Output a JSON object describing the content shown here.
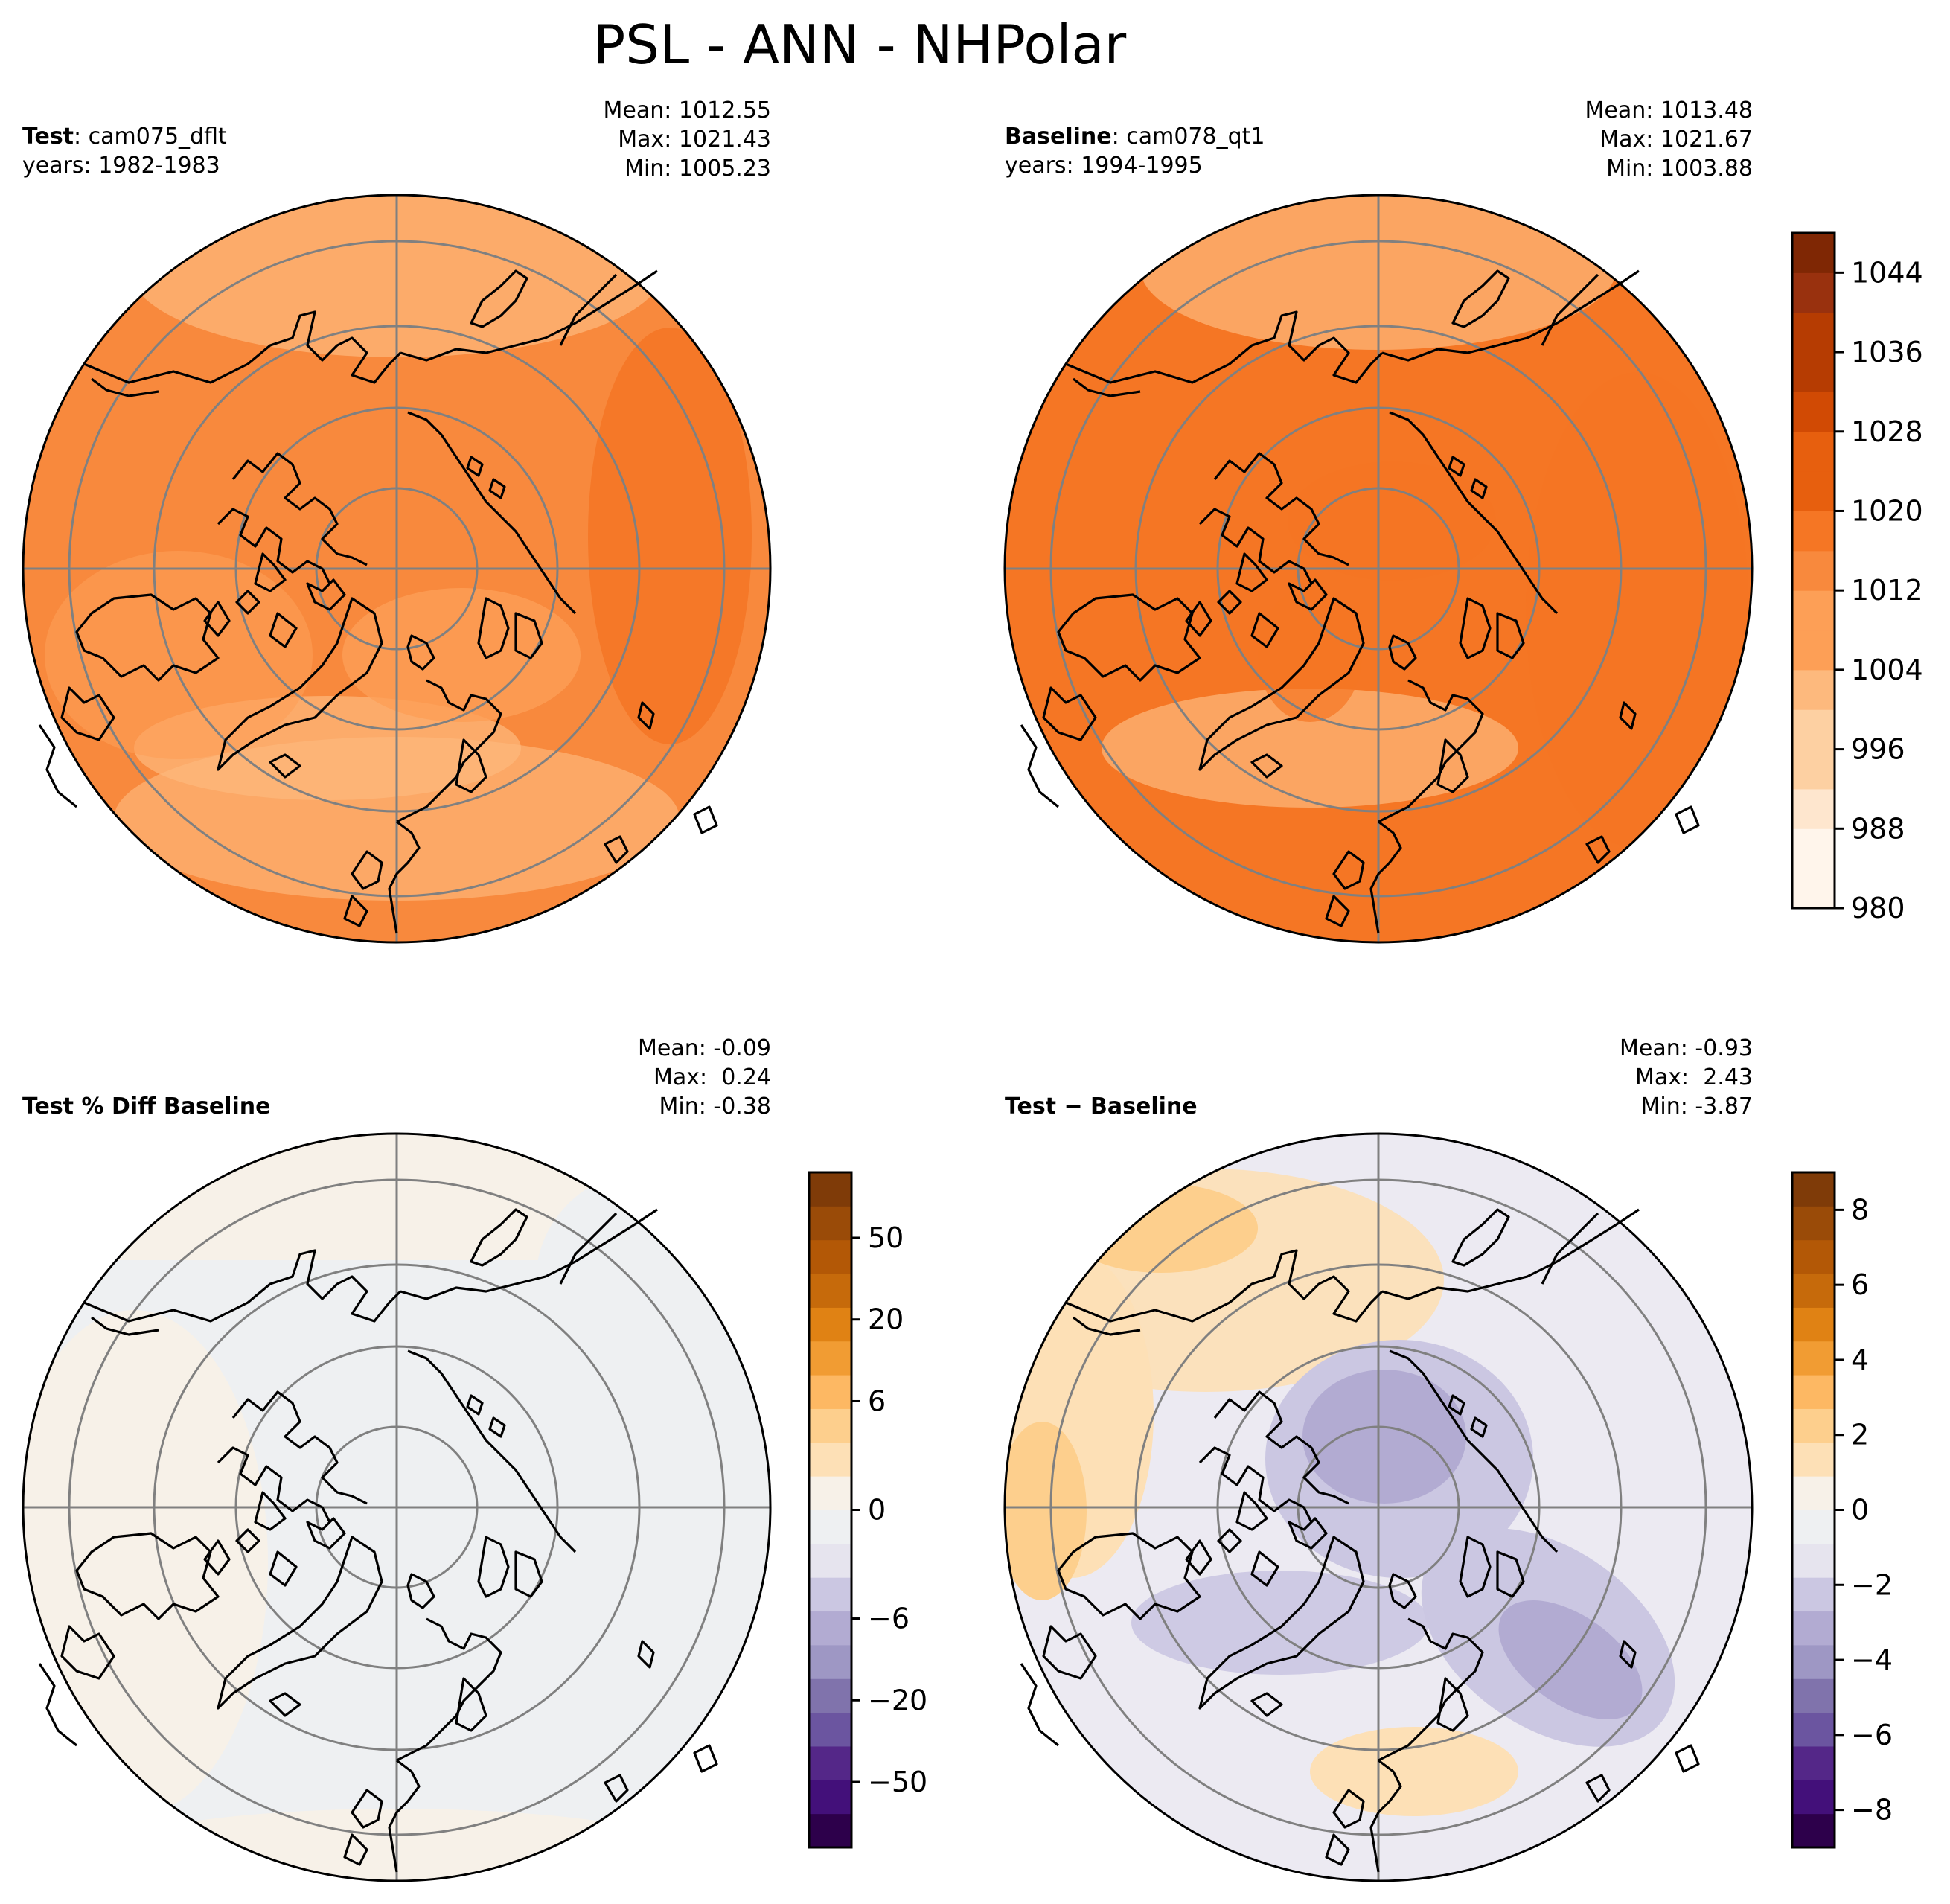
{
  "title": "PSL - ANN - NHPolar",
  "colors": {
    "orange_scale": [
      "#fff5eb",
      "#fee6ce",
      "#fdd0a2",
      "#fdb97d",
      "#fd9f56",
      "#f8893d",
      "#f57624",
      "#e75f0e",
      "#d14a04",
      "#b63c02",
      "#99310e",
      "#7f2704"
    ],
    "diff_scale": [
      "#2d004b",
      "#43107a",
      "#542788",
      "#6b55a0",
      "#8073ac",
      "#9e97c4",
      "#b2abd2",
      "#cbc7e2",
      "#e6e4ee",
      "#eef0f2",
      "#f7f1e8",
      "#fde0b6",
      "#fdcf8d",
      "#fdb863",
      "#f19c33",
      "#e08214",
      "#c66a0b",
      "#b35806",
      "#9a4b08",
      "#7f3b08"
    ],
    "grid": "#808080",
    "coast": "#000000"
  },
  "panels": [
    {
      "id": "test",
      "label_bold": "Test",
      "label_rest": ": cam075_dflt",
      "years": "years: 1982-1983",
      "stats": [
        "Mean: 1012.55",
        "Max: 1021.43",
        "Min: 1005.23"
      ],
      "field_mean_color": "#f8893d"
    },
    {
      "id": "baseline",
      "label_bold": "Baseline",
      "label_rest": ": cam078_qt1",
      "years": "years: 1994-1995",
      "stats": [
        "Mean: 1013.48",
        "Max: 1021.67",
        "Min: 1003.88"
      ],
      "field_mean_color": "#f57624"
    },
    {
      "id": "pctdiff",
      "label_bold": "Test % Diff Baseline",
      "label_rest": "",
      "years": "",
      "stats": [
        "Mean: -0.09",
        "Max:  0.24",
        "Min: -0.38"
      ],
      "field_mean_color": "#eef0f2"
    },
    {
      "id": "diff",
      "label_bold": "Test − Baseline",
      "label_rest": "",
      "years": "",
      "stats": [
        "Mean: -0.93",
        "Max:  2.43",
        "Min: -3.87"
      ],
      "field_mean_color": "#eceaf2"
    }
  ],
  "colorbars": [
    {
      "id": "psl",
      "ticks": [
        "980",
        "988",
        "996",
        "1004",
        "1012",
        "1020",
        "1028",
        "1036",
        "1044"
      ]
    },
    {
      "id": "pct",
      "ticks": [
        "−50",
        "−20",
        "−6",
        "0",
        "6",
        "20",
        "50"
      ]
    },
    {
      "id": "abs",
      "ticks": [
        "−8",
        "−6",
        "−4",
        "−2",
        "0",
        "2",
        "4",
        "6",
        "8"
      ]
    }
  ]
}
